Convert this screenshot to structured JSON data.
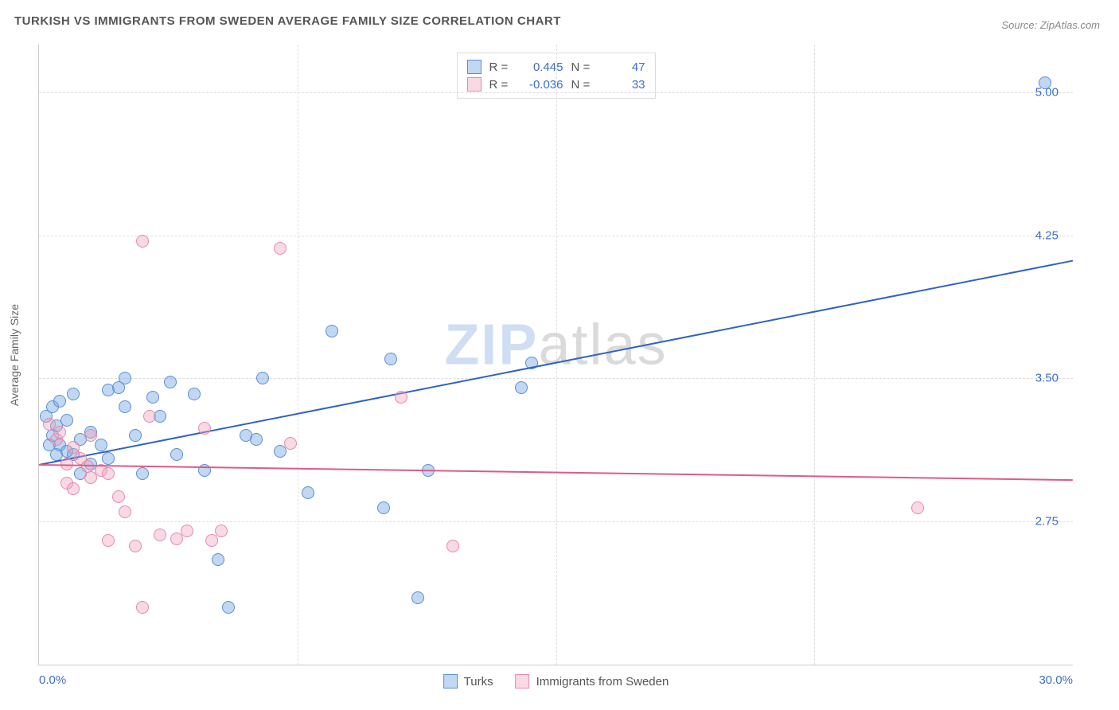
{
  "title": "TURKISH VS IMMIGRANTS FROM SWEDEN AVERAGE FAMILY SIZE CORRELATION CHART",
  "source": "Source: ZipAtlas.com",
  "watermark_zip": "ZIP",
  "watermark_atlas": "atlas",
  "y_axis_title": "Average Family Size",
  "chart": {
    "type": "scatter",
    "background_color": "#ffffff",
    "grid_color": "#dddddd",
    "axis_color": "#cccccc",
    "tick_label_color": "#3b6fc9",
    "xlim": [
      0.0,
      30.0
    ],
    "ylim": [
      2.0,
      5.25
    ],
    "yticks": [
      2.75,
      3.5,
      4.25,
      5.0
    ],
    "ytick_labels": [
      "2.75",
      "3.50",
      "4.25",
      "5.00"
    ],
    "xtick_labels_left": "0.0%",
    "xtick_labels_right": "30.0%",
    "x_grid_positions": [
      7.5,
      15.0,
      22.5
    ],
    "marker_radius": 8,
    "series": [
      {
        "id": "turks",
        "label": "Turks",
        "fill_color": "rgba(120,167,226,0.45)",
        "stroke_color": "#5a8fd6",
        "trend_color": "#2e63c0",
        "trend_y_start": 3.05,
        "trend_y_end": 4.12,
        "R": "0.445",
        "N": "47",
        "points": [
          [
            0.2,
            3.3
          ],
          [
            0.3,
            3.15
          ],
          [
            0.4,
            3.2
          ],
          [
            0.4,
            3.35
          ],
          [
            0.5,
            3.1
          ],
          [
            0.5,
            3.25
          ],
          [
            0.6,
            3.15
          ],
          [
            0.6,
            3.38
          ],
          [
            0.8,
            3.12
          ],
          [
            0.8,
            3.28
          ],
          [
            1.0,
            3.1
          ],
          [
            1.0,
            3.42
          ],
          [
            1.2,
            3.18
          ],
          [
            1.2,
            3.0
          ],
          [
            1.5,
            3.05
          ],
          [
            1.5,
            3.22
          ],
          [
            1.8,
            3.15
          ],
          [
            2.0,
            3.08
          ],
          [
            2.0,
            3.44
          ],
          [
            2.3,
            3.45
          ],
          [
            2.5,
            3.35
          ],
          [
            2.5,
            3.5
          ],
          [
            2.8,
            3.2
          ],
          [
            3.0,
            3.0
          ],
          [
            3.3,
            3.4
          ],
          [
            3.5,
            3.3
          ],
          [
            3.8,
            3.48
          ],
          [
            4.0,
            3.1
          ],
          [
            4.5,
            3.42
          ],
          [
            4.8,
            3.02
          ],
          [
            5.2,
            2.55
          ],
          [
            5.5,
            2.3
          ],
          [
            6.0,
            3.2
          ],
          [
            6.3,
            3.18
          ],
          [
            6.5,
            3.5
          ],
          [
            7.0,
            3.12
          ],
          [
            7.8,
            2.9
          ],
          [
            8.5,
            3.75
          ],
          [
            10.0,
            2.82
          ],
          [
            10.2,
            3.6
          ],
          [
            11.0,
            2.35
          ],
          [
            11.3,
            3.02
          ],
          [
            14.0,
            3.45
          ],
          [
            14.3,
            3.58
          ],
          [
            29.2,
            5.05
          ]
        ]
      },
      {
        "id": "sweden",
        "label": "Immigrants from Sweden",
        "fill_color": "rgba(240,160,185,0.40)",
        "stroke_color": "#e68aa9",
        "trend_color": "#e05a87",
        "trend_y_start": 3.05,
        "trend_y_end": 2.97,
        "R": "-0.036",
        "N": "33",
        "points": [
          [
            0.3,
            3.26
          ],
          [
            0.5,
            3.18
          ],
          [
            0.6,
            3.22
          ],
          [
            0.8,
            3.05
          ],
          [
            0.8,
            2.95
          ],
          [
            1.0,
            3.14
          ],
          [
            1.0,
            2.92
          ],
          [
            1.2,
            3.08
          ],
          [
            1.4,
            3.04
          ],
          [
            1.5,
            2.98
          ],
          [
            1.5,
            3.2
          ],
          [
            1.8,
            3.02
          ],
          [
            2.0,
            2.65
          ],
          [
            2.0,
            3.0
          ],
          [
            2.3,
            2.88
          ],
          [
            2.5,
            2.8
          ],
          [
            2.8,
            2.62
          ],
          [
            3.0,
            4.22
          ],
          [
            3.0,
            2.3
          ],
          [
            3.2,
            3.3
          ],
          [
            3.5,
            2.68
          ],
          [
            4.0,
            2.66
          ],
          [
            4.3,
            2.7
          ],
          [
            4.8,
            3.24
          ],
          [
            5.0,
            2.65
          ],
          [
            5.3,
            2.7
          ],
          [
            7.0,
            4.18
          ],
          [
            7.3,
            3.16
          ],
          [
            10.5,
            3.4
          ],
          [
            12.0,
            2.62
          ],
          [
            25.5,
            2.82
          ]
        ]
      }
    ]
  },
  "legend_labels": {
    "R": "R = ",
    "N": "N = "
  }
}
